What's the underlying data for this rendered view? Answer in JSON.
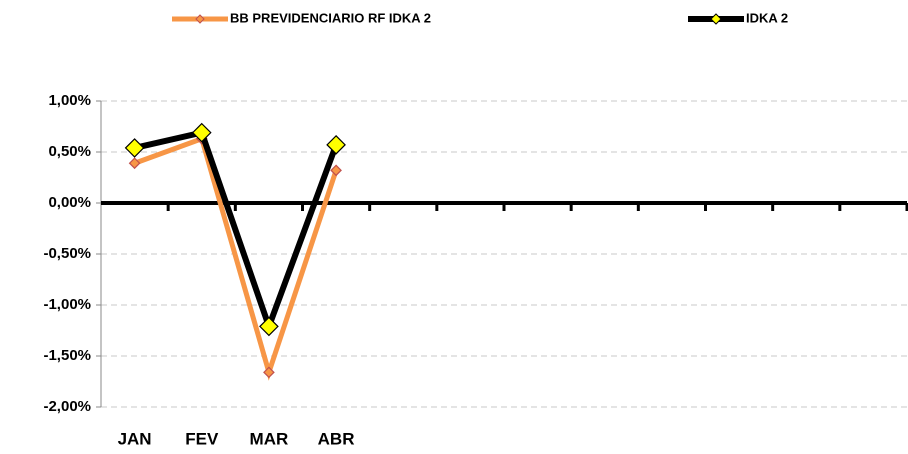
{
  "chart_data": {
    "type": "line",
    "categories": [
      "JAN",
      "FEV",
      "MAR",
      "ABR",
      null,
      null,
      null,
      null,
      null,
      null,
      null,
      null
    ],
    "series": [
      {
        "name": "BB PREVIDENCIARIO RF IDKA 2",
        "color": "#f79646",
        "marker_color": "#f79646",
        "values": [
          0.39,
          0.63,
          -1.66,
          0.32,
          null,
          null,
          null,
          null,
          null,
          null,
          null,
          null
        ]
      },
      {
        "name": "IDKA 2",
        "color": "#000000",
        "marker_color": "#ffff00",
        "values": [
          0.54,
          0.69,
          -1.21,
          0.57,
          null,
          null,
          null,
          null,
          null,
          null,
          null,
          null
        ]
      }
    ],
    "ylim": [
      -2,
      1
    ],
    "yticks": [
      {
        "value": -2,
        "label": "-2,00%"
      },
      {
        "value": -1.5,
        "label": "-1,50%"
      },
      {
        "value": -1,
        "label": "-1,00%"
      },
      {
        "value": -0.5,
        "label": "-0,50%"
      },
      {
        "value": 0,
        "label": "0,00%"
      },
      {
        "value": 0.5,
        "label": "0,50%"
      },
      {
        "value": 1,
        "label": "1,00%"
      }
    ],
    "grid": true,
    "legend": "top"
  }
}
